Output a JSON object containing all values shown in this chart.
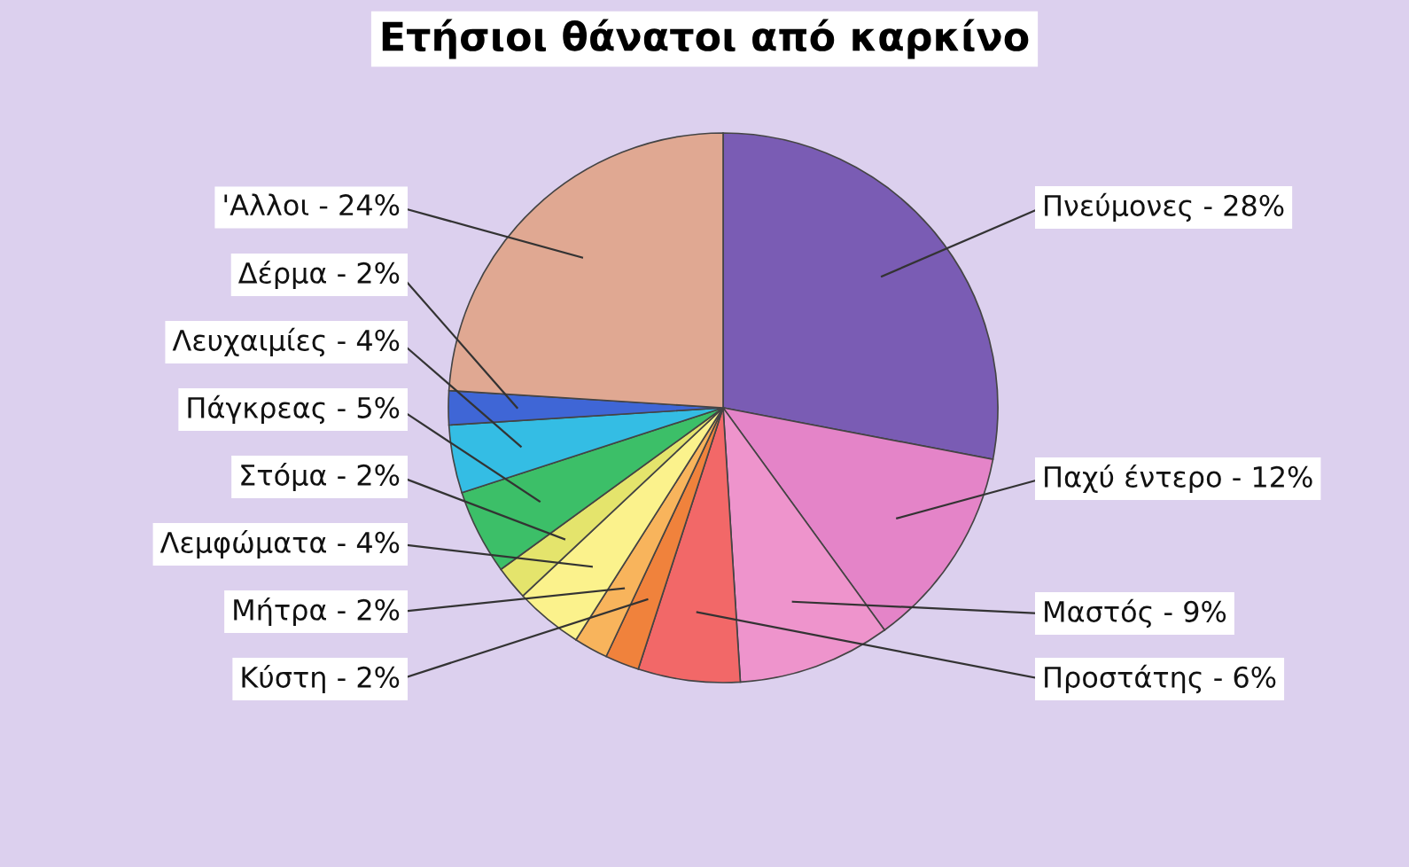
{
  "chart_data": {
    "type": "pie",
    "title": "Ετήσιοι θάνατοι από καρκίνο",
    "categories": [
      "Πνεύμονες - 28%",
      "Παχύ έντερο - 12%",
      "Μαστός - 9%",
      "Προστάτης - 6%",
      "Κύστη - 2%",
      "Μήτρα - 2%",
      "Λεμφώματα - 4%",
      "Στόμα - 2%",
      "Πάγκρεας - 5%",
      "Λευχαιμίες - 4%",
      "Δέρμα - 2%",
      "'Αλλοι - 24%"
    ],
    "values": [
      28,
      12,
      9,
      6,
      2,
      2,
      4,
      2,
      5,
      4,
      2,
      24
    ],
    "colors": [
      "#7a5cb4",
      "#e484c8",
      "#ee94cc",
      "#f26868",
      "#f0823c",
      "#f8b45c",
      "#fbf28c",
      "#e4e46c",
      "#3cbf68",
      "#34bde4",
      "#3f66d6",
      "#e0a892"
    ]
  }
}
